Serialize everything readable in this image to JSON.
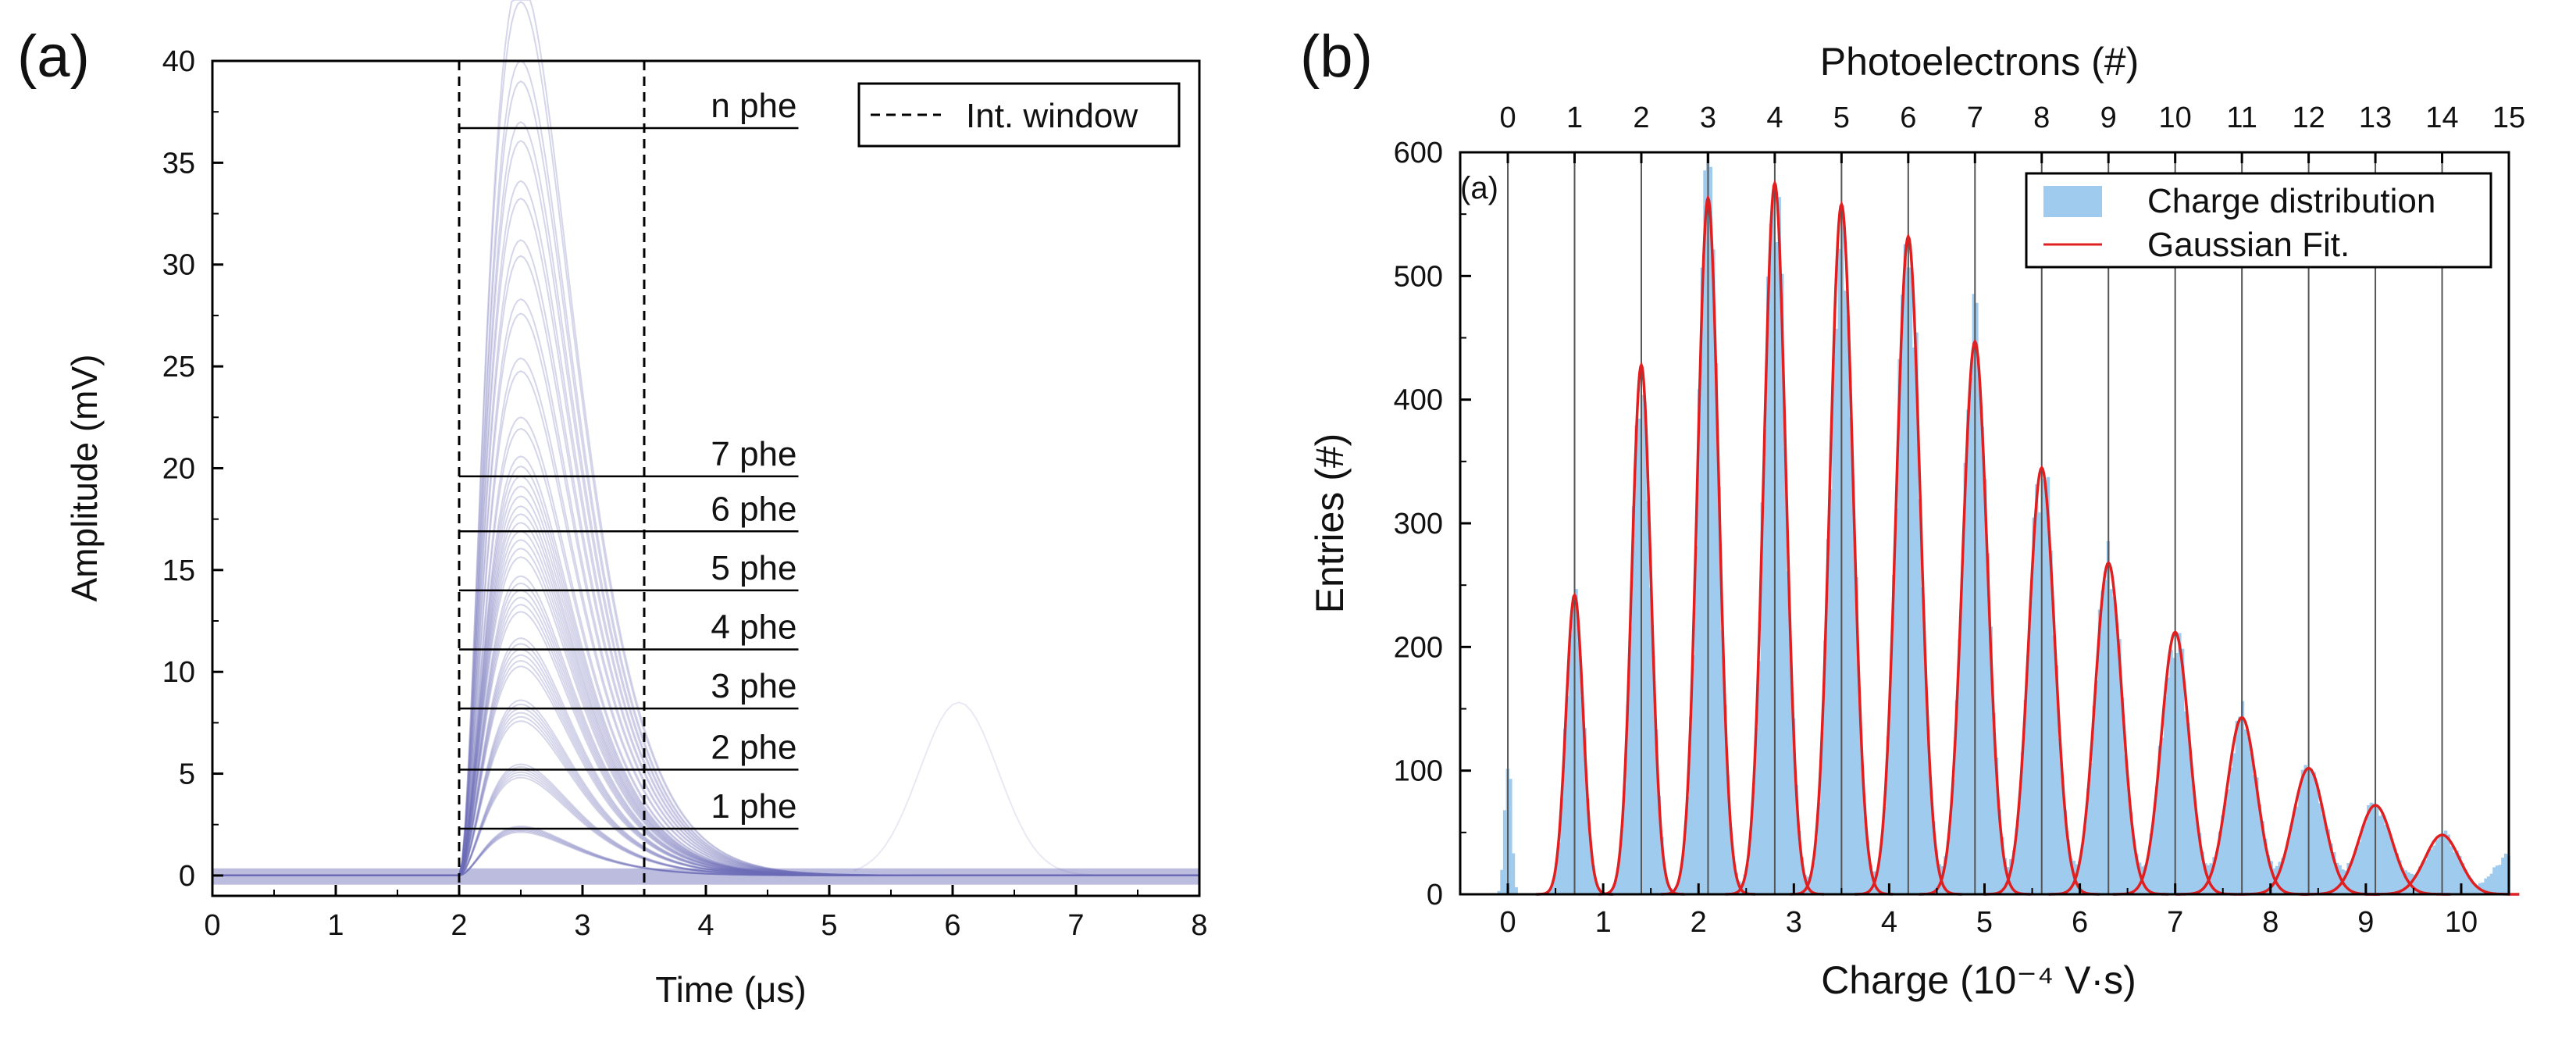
{
  "panel_a": {
    "label": "(a)",
    "legend": "Int. window",
    "levels": [
      "1 phe",
      "2 phe",
      "3 phe",
      "4 phe",
      "5 phe",
      "6 phe",
      "7 phe",
      "n phe"
    ],
    "trace_color": "#6a6ab8"
  },
  "panel_b": {
    "label": "(b)",
    "inner_label": "(a)",
    "legend": [
      "Charge distribution",
      "Gaussian Fit."
    ],
    "hist_color": "#9ecbee",
    "fit_color": "#e02020"
  },
  "chart_data": [
    {
      "type": "line",
      "xlabel": "Time (μs)",
      "ylabel": "Amplitude (mV)",
      "xlim": [
        0,
        8
      ],
      "ylim": [
        -1,
        40
      ],
      "xticks": [
        0,
        1,
        2,
        3,
        4,
        5,
        6,
        7,
        8
      ],
      "yticks": [
        0,
        5,
        10,
        15,
        20,
        25,
        30,
        35,
        40
      ],
      "integration_window": [
        2.0,
        3.5
      ],
      "level_lines": [
        {
          "label": "1 phe",
          "y": 2.3
        },
        {
          "label": "2 phe",
          "y": 5.2
        },
        {
          "label": "3 phe",
          "y": 8.2
        },
        {
          "label": "4 phe",
          "y": 11.1
        },
        {
          "label": "5 phe",
          "y": 14.0
        },
        {
          "label": "6 phe",
          "y": 16.9
        },
        {
          "label": "7 phe",
          "y": 19.6
        },
        {
          "label": "n phe",
          "y": 36.7
        }
      ],
      "pulse_peak_time": 2.5,
      "legend_position": "top-right"
    },
    {
      "type": "bar",
      "xlabel": "Charge (10⁻⁴ V·s)",
      "ylabel": "Entries (#)",
      "top_xlabel": "Photoelectrons (#)",
      "xlim": [
        -0.5,
        10.5
      ],
      "ylim": [
        0,
        600
      ],
      "xticks": [
        0,
        1,
        2,
        3,
        4,
        5,
        6,
        7,
        8,
        9,
        10
      ],
      "yticks": [
        0,
        100,
        200,
        300,
        400,
        500,
        600
      ],
      "top_ticks": [
        {
          "label": "0",
          "x": 0.0
        },
        {
          "label": "1",
          "x": 0.7
        },
        {
          "label": "2",
          "x": 1.4
        },
        {
          "label": "3",
          "x": 2.1
        },
        {
          "label": "4",
          "x": 2.8
        },
        {
          "label": "5",
          "x": 3.5
        },
        {
          "label": "6",
          "x": 4.2
        },
        {
          "label": "7",
          "x": 4.9
        },
        {
          "label": "8",
          "x": 5.6
        },
        {
          "label": "9",
          "x": 6.3
        },
        {
          "label": "10",
          "x": 7.0
        },
        {
          "label": "11",
          "x": 7.7
        },
        {
          "label": "12",
          "x": 8.4
        },
        {
          "label": "13",
          "x": 9.1
        },
        {
          "label": "14",
          "x": 9.8
        },
        {
          "label": "15",
          "x": 10.5
        }
      ],
      "series": [
        {
          "name": "Gaussian Fit.",
          "peaks": [
            {
              "x": 0.7,
              "y": 242,
              "sigma": 0.09
            },
            {
              "x": 1.4,
              "y": 428,
              "sigma": 0.1
            },
            {
              "x": 2.1,
              "y": 563,
              "sigma": 0.11
            },
            {
              "x": 2.8,
              "y": 575,
              "sigma": 0.115
            },
            {
              "x": 3.5,
              "y": 558,
              "sigma": 0.12
            },
            {
              "x": 4.2,
              "y": 532,
              "sigma": 0.125
            },
            {
              "x": 4.9,
              "y": 447,
              "sigma": 0.13
            },
            {
              "x": 5.6,
              "y": 345,
              "sigma": 0.135
            },
            {
              "x": 6.3,
              "y": 268,
              "sigma": 0.14
            },
            {
              "x": 7.0,
              "y": 212,
              "sigma": 0.145
            },
            {
              "x": 7.7,
              "y": 143,
              "sigma": 0.155
            },
            {
              "x": 8.4,
              "y": 102,
              "sigma": 0.165
            },
            {
              "x": 9.1,
              "y": 72,
              "sigma": 0.175
            },
            {
              "x": 9.8,
              "y": 48,
              "sigma": 0.18
            }
          ]
        },
        {
          "name": "Charge distribution",
          "pedestal": {
            "x": 0.0,
            "y": 112,
            "sigma": 0.035
          },
          "tail_level": 35
        }
      ],
      "legend_position": "top-right"
    }
  ]
}
